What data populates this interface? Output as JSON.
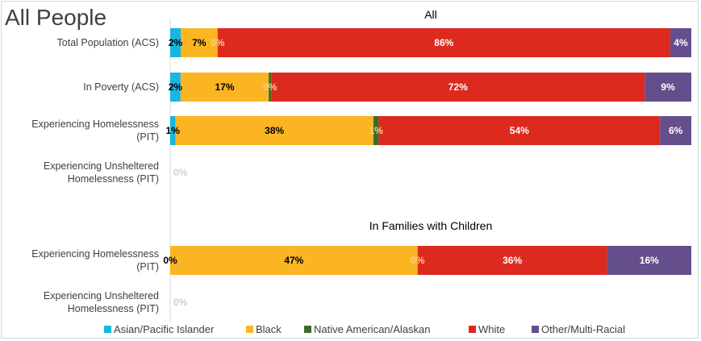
{
  "page_title": "All People",
  "chart_data": {
    "type": "bar",
    "orientation": "horizontal",
    "stacked": "100%",
    "xlim": [
      0,
      100
    ],
    "grid": false,
    "legend_position": "bottom",
    "segment_colors": [
      "#17b6e0",
      "#fbb523",
      "#3e6b2a",
      "#dd2a1f",
      "#654e8c"
    ],
    "legend": [
      {
        "name": "Asian/Pacific Islander",
        "color": "#17b6e0"
      },
      {
        "name": "Black",
        "color": "#fbb523"
      },
      {
        "name": "Native American/Alaskan",
        "color": "#3e6b2a"
      },
      {
        "name": "White",
        "color": "#dd2a1f"
      },
      {
        "name": "Other/Multi-Racial",
        "color": "#654e8c"
      }
    ],
    "sections": [
      {
        "title": "All",
        "rows": [
          {
            "label": [
              "Total Population (ACS)"
            ],
            "values": [
              2,
              7,
              0,
              86,
              4
            ],
            "labels": [
              "2%",
              "7%",
              "0%",
              "86%",
              "4%"
            ]
          },
          {
            "label": [
              "In Poverty (ACS)"
            ],
            "values": [
              2,
              17,
              0.5,
              72,
              9
            ],
            "labels": [
              "2%",
              "17%",
              "0%",
              "72%",
              "9%"
            ]
          },
          {
            "label": [
              "Experiencing Homelessness",
              "(PIT)"
            ],
            "values": [
              1,
              38,
              1,
              54,
              6
            ],
            "labels": [
              "1%",
              "38%",
              "1%",
              "54%",
              "6%"
            ]
          },
          {
            "label": [
              "Experiencing Unsheltered",
              "Homelessness (PIT)"
            ],
            "values": [
              0,
              0,
              0,
              0,
              0
            ],
            "labels": [
              "0%",
              "",
              "",
              "",
              ""
            ]
          }
        ]
      },
      {
        "title": "In Families with Children",
        "rows": [
          {
            "label": [
              "Experiencing Homelessness",
              "(PIT)"
            ],
            "values": [
              0,
              47,
              0,
              36,
              16
            ],
            "labels": [
              "0%",
              "47%",
              "0%",
              "36%",
              "16%"
            ]
          },
          {
            "label": [
              "Experiencing Unsheltered",
              "Homelessness (PIT)"
            ],
            "values": [
              0,
              0,
              0,
              0,
              0
            ],
            "labels": [
              "0%",
              "",
              "",
              "",
              ""
            ]
          }
        ]
      }
    ]
  }
}
